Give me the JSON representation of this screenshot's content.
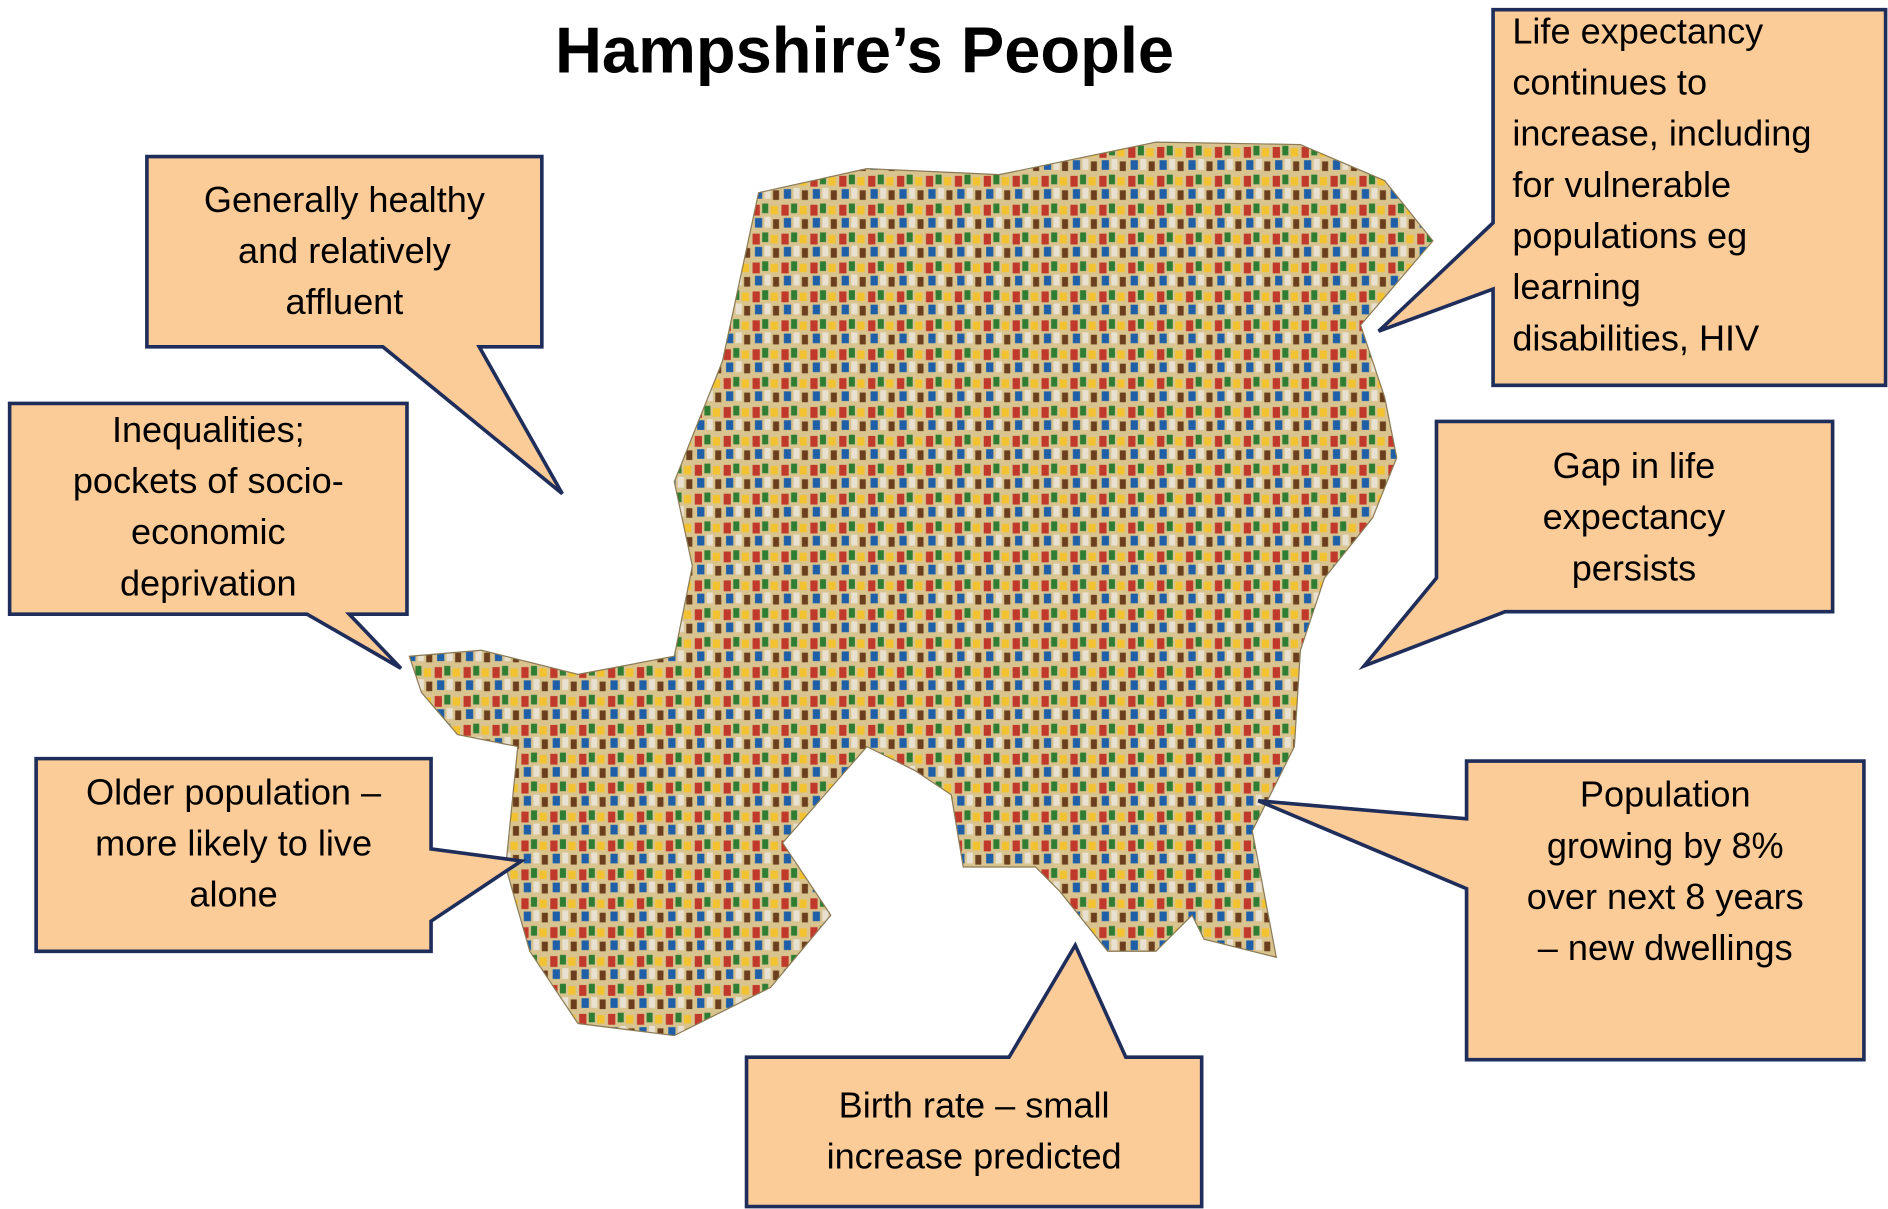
{
  "title": "Hampshire’s People",
  "callouts": [
    {
      "lines": [
        "Generally healthy",
        "and relatively",
        "affluent"
      ]
    },
    {
      "lines": [
        "Inequalities;",
        "pockets of socio-",
        "economic",
        "deprivation"
      ]
    },
    {
      "lines": [
        "Older population –",
        "more likely to live",
        "alone"
      ]
    },
    {
      "lines": [
        "Birth rate – small",
        "increase predicted"
      ]
    },
    {
      "lines": [
        "Population",
        "growing by 8%",
        "over next 8 years",
        "– new dwellings"
      ]
    },
    {
      "lines": [
        "Gap in life",
        "expectancy",
        "persists"
      ]
    },
    {
      "lines": [
        "Life expectancy",
        "continues to",
        "increase, including",
        "for vulnerable",
        "populations eg",
        "learning",
        "disabilities, HIV"
      ]
    }
  ]
}
